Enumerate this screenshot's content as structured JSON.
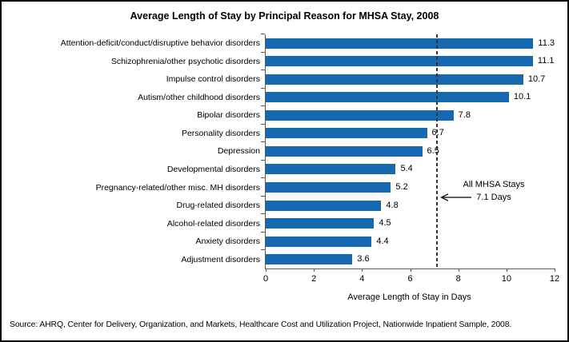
{
  "chart_data": {
    "type": "bar",
    "orientation": "horizontal",
    "title": "Average Length of Stay by Principal Reason for MHSA Stay, 2008",
    "xlabel": "Average Length of Stay in Days",
    "xlim": [
      0,
      12
    ],
    "xticks": [
      0,
      2,
      4,
      6,
      8,
      10,
      12
    ],
    "categories": [
      "Attention-deficit/conduct/disruptive behavior disorders",
      "Schizophrenia/other psychotic disorders",
      "Impulse control disorders",
      "Autism/other childhood disorders",
      "Bipolar disorders",
      "Personality disorders",
      "Depression",
      "Developmental disorders",
      "Pregnancy-related/other misc. MH disorders",
      "Drug-related disorders",
      "Alcohol-related disorders",
      "Anxiety disorders",
      "Adjustment disorders"
    ],
    "values": [
      11.3,
      11.1,
      10.7,
      10.1,
      7.8,
      6.7,
      6.5,
      5.4,
      5.2,
      4.8,
      4.5,
      4.4,
      3.6
    ],
    "value_labels": true,
    "grid": false,
    "bar_color": "#1668B0",
    "axis_color": "#595959",
    "reference_line": {
      "value": 7.1,
      "style": "dashed",
      "color": "#333333",
      "label_line1": "All MHSA Stays",
      "label_line2": "7.1 Days"
    }
  },
  "source_note": "Source: AHRQ, Center for Delivery,  Organization, and Markets, Healthcare Cost and Utilization Project, Nationwide Inpatient Sample, 2008."
}
